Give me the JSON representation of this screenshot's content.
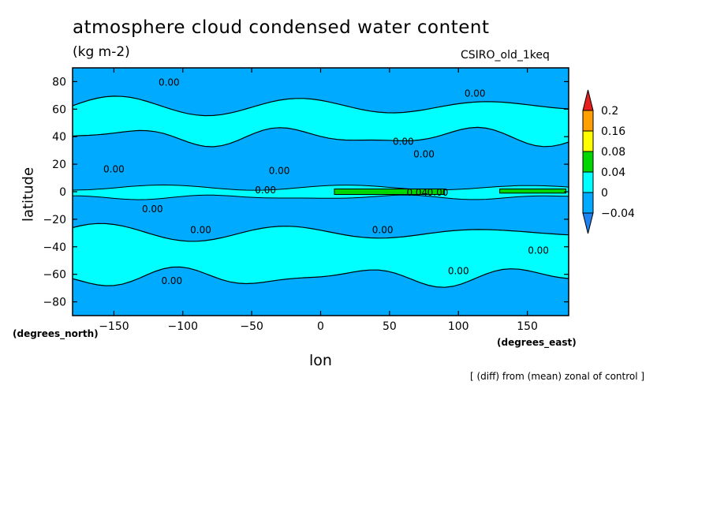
{
  "chart_data": {
    "type": "heatmap",
    "title": "atmosphere cloud condensed water content",
    "units": "(kg m-2)",
    "model": "CSIRO_old_1keq",
    "xlabel": "lon",
    "ylabel": "latitude",
    "x_unit_label": "(degrees_east)",
    "y_unit_label": "(degrees_north)",
    "note": "[ (diff) from (mean) zonal of control ]",
    "xlim": [
      -180,
      180
    ],
    "ylim": [
      -90,
      90
    ],
    "x_ticks": [
      -150,
      -100,
      -50,
      0,
      50,
      100,
      150
    ],
    "x_tick_labels": [
      "−150",
      "−100",
      "−50",
      "0",
      "50",
      "100",
      "150"
    ],
    "y_ticks": [
      80,
      60,
      40,
      20,
      0,
      -20,
      -40,
      -60,
      -80
    ],
    "y_tick_labels": [
      "80",
      "60",
      "40",
      "20",
      "0",
      "−20",
      "−40",
      "−60",
      "−80"
    ],
    "colorbar": {
      "levels": [
        -0.04,
        0,
        0.04,
        0.08,
        0.16,
        0.2
      ],
      "labels": [
        "−0.04",
        "0",
        "0.04",
        "0.08",
        "0.16",
        "0.2"
      ],
      "colors": [
        "#1e82f0",
        "#00aaff",
        "#00ffff",
        "#00d700",
        "#ffff00",
        "#ffa000",
        "#e61e1e"
      ]
    },
    "regions": [
      {
        "level": "-0.04..0",
        "color": "#00aaff",
        "lat_band": [
          66,
          90
        ],
        "note": "northern high latitudes"
      },
      {
        "level": "0..0.04",
        "color": "#00ffff",
        "lat_band": [
          40,
          62
        ],
        "note": "northern mid latitudes"
      },
      {
        "level": "-0.04..0",
        "color": "#00aaff",
        "lat_band": [
          4,
          40
        ],
        "note": "northern subtropics"
      },
      {
        "level": "0.04..0.08",
        "color": "#00d700",
        "lat_band": [
          -2,
          2
        ],
        "lon_band": [
          10,
          90
        ],
        "note": "equatorial band"
      },
      {
        "level": "-0.04..0",
        "color": "#00aaff",
        "lat_band": [
          -30,
          -2
        ],
        "note": "southern subtropics"
      },
      {
        "level": "0..0.04",
        "color": "#00ffff",
        "lat_band": [
          -62,
          -30
        ],
        "note": "southern mid latitudes"
      },
      {
        "level": "-0.04..0",
        "color": "#00aaff",
        "lat_band": [
          -90,
          -62
        ],
        "note": "southern high latitudes"
      }
    ],
    "contour_labels": [
      {
        "text": "0.00",
        "lon": -110,
        "lat": 79
      },
      {
        "text": "0.00",
        "lon": 112,
        "lat": 71
      },
      {
        "text": "0.00",
        "lon": 60,
        "lat": 36
      },
      {
        "text": "0.00",
        "lon": 75,
        "lat": 27
      },
      {
        "text": "0.00",
        "lon": -150,
        "lat": 16
      },
      {
        "text": "0.00",
        "lon": -30,
        "lat": 15
      },
      {
        "text": "0.00",
        "lon": -40,
        "lat": 1
      },
      {
        "text": "0.04",
        "lon": 70,
        "lat": -1
      },
      {
        "text": "0.00",
        "lon": 85,
        "lat": -1
      },
      {
        "text": "0.00",
        "lon": -122,
        "lat": -13
      },
      {
        "text": "0.00",
        "lon": -87,
        "lat": -28
      },
      {
        "text": "0.00",
        "lon": 45,
        "lat": -28
      },
      {
        "text": "0.00",
        "lon": 158,
        "lat": -43
      },
      {
        "text": "0.00",
        "lon": 100,
        "lat": -58
      },
      {
        "text": "0.00",
        "lon": -108,
        "lat": -65
      }
    ]
  }
}
